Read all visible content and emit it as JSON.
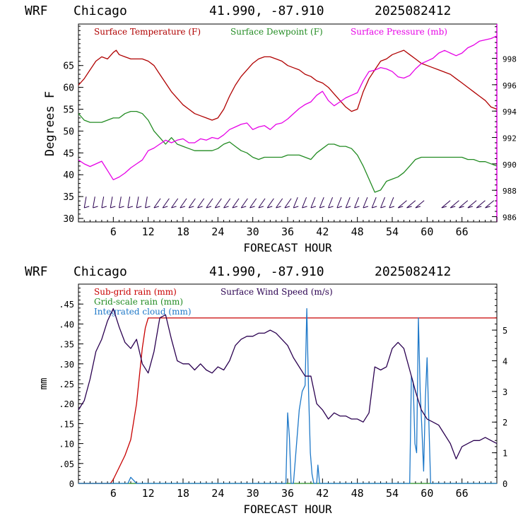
{
  "top_header": {
    "model": "WRF",
    "location": "Chicago",
    "coords": "41.990, -87.910",
    "run": "2025082412"
  },
  "bottom_header": {
    "model": "WRF",
    "location": "Chicago",
    "coords": "41.990, -87.910",
    "run": "2025082412"
  },
  "colors": {
    "temperature": "#b00000",
    "dewpoint": "#228b22",
    "pressure": "#e600e6",
    "sub_grid_rain": "#c80000",
    "grid_scale_rain": "#228b22",
    "integrated_cloud": "#1e78c8",
    "wind_speed": "#2a0050",
    "wind_barbs": "#2a0050",
    "axes": "#000000"
  },
  "chart_data": [
    {
      "type": "line",
      "xlabel": "FORECAST HOUR",
      "ylabel": "Degrees F",
      "x_ticks": [
        "6",
        "12",
        "18",
        "24",
        "30",
        "36",
        "42",
        "48",
        "54",
        "60",
        "66"
      ],
      "x_tick_values": [
        6,
        12,
        18,
        24,
        30,
        36,
        42,
        48,
        54,
        60,
        66
      ],
      "xlim": [
        0,
        72
      ],
      "y_ticks": [
        "30",
        "35",
        "40",
        "45",
        "50",
        "55",
        "60",
        "65"
      ],
      "y_tick_values": [
        30,
        35,
        40,
        45,
        50,
        55,
        60,
        65
      ],
      "ylim": [
        29.2,
        74.5
      ],
      "y2_ticks": [
        "986",
        "988",
        "990",
        "992",
        "994",
        "996",
        "998"
      ],
      "y2_tick_values": [
        986,
        988,
        990,
        992,
        994,
        996,
        998
      ],
      "y2lim": [
        985.6,
        1000.6
      ],
      "legend": [
        "Surface Temperature (F)",
        "Surface Dewpoint (F)",
        "Surface Pressure (mb)"
      ],
      "legend_placement": "top",
      "series": [
        {
          "name": "Surface Temperature (F)",
          "axis": "left",
          "x": [
            0,
            1,
            2,
            3,
            4,
            5,
            6,
            6.5,
            7,
            8,
            9,
            10,
            11,
            12,
            13,
            14,
            15,
            16,
            17,
            18,
            19,
            20,
            21,
            22,
            23,
            24,
            25,
            26,
            27,
            28,
            29,
            30,
            31,
            32,
            33,
            34,
            35,
            36,
            37,
            38,
            39,
            40,
            41,
            42,
            43,
            44,
            45,
            46,
            47,
            48,
            49,
            50,
            51,
            52,
            53,
            54,
            55,
            56,
            57,
            58,
            59,
            60,
            61,
            62,
            63,
            64,
            65,
            66,
            67,
            68,
            69,
            70,
            71,
            72
          ],
          "values": [
            60.5,
            62,
            64,
            66,
            67,
            66.5,
            68,
            68.5,
            67.5,
            67,
            66.5,
            66.5,
            66.5,
            66,
            65,
            63,
            61,
            59,
            57.5,
            56,
            55,
            54,
            53.5,
            53,
            52.5,
            53,
            55,
            58,
            60.5,
            62.5,
            64,
            65.5,
            66.5,
            67,
            67,
            66.5,
            66,
            65,
            64.5,
            64,
            63,
            62.5,
            61.5,
            61,
            60,
            58.5,
            57,
            55.5,
            54.5,
            55,
            59,
            62,
            64,
            66,
            66.5,
            67.5,
            68,
            68.5,
            67.5,
            66.5,
            65.5,
            65,
            64.5,
            64,
            63.5,
            63,
            62,
            61,
            60,
            59,
            58,
            57,
            55.5,
            55
          ]
        },
        {
          "name": "Surface Dewpoint (F)",
          "axis": "left",
          "x": [
            0,
            1,
            2,
            3,
            4,
            5,
            6,
            7,
            8,
            9,
            10,
            11,
            12,
            13,
            14,
            15,
            16,
            17,
            18,
            19,
            20,
            21,
            22,
            23,
            24,
            25,
            26,
            27,
            28,
            29,
            30,
            31,
            32,
            33,
            34,
            35,
            36,
            37,
            38,
            39,
            40,
            41,
            42,
            43,
            44,
            45,
            46,
            47,
            48,
            49,
            50,
            51,
            52,
            53,
            54,
            55,
            56,
            57,
            58,
            59,
            60,
            61,
            62,
            63,
            64,
            65,
            66,
            67,
            68,
            69,
            70,
            71,
            72
          ],
          "values": [
            54,
            52.5,
            52,
            52,
            52,
            52.5,
            53,
            53,
            54,
            54.5,
            54.5,
            54,
            52.5,
            50,
            48.5,
            47,
            48.5,
            47,
            46.5,
            46,
            45.5,
            45.5,
            45.5,
            45.5,
            46,
            47,
            47.5,
            46.5,
            45.5,
            45,
            44,
            43.5,
            44,
            44,
            44,
            44,
            44.5,
            44.5,
            44.5,
            44,
            43.5,
            45,
            46,
            47,
            47,
            46.5,
            46.5,
            46,
            44.5,
            42,
            39,
            36,
            36.5,
            38.5,
            39,
            39.5,
            40.5,
            42,
            43.5,
            44,
            44,
            44,
            44,
            44,
            44,
            44,
            44,
            43.5,
            43.5,
            43,
            43,
            42.5,
            42
          ]
        },
        {
          "name": "Surface Pressure (mb)",
          "axis": "right",
          "x": [
            0,
            1,
            2,
            3,
            4,
            5,
            6,
            7,
            8,
            9,
            10,
            11,
            12,
            13,
            14,
            15,
            16,
            17,
            18,
            19,
            20,
            21,
            22,
            23,
            24,
            25,
            26,
            27,
            28,
            29,
            30,
            31,
            32,
            33,
            34,
            35,
            36,
            37,
            38,
            39,
            40,
            41,
            42,
            43,
            44,
            45,
            46,
            47,
            48,
            49,
            50,
            51,
            52,
            53,
            54,
            55,
            56,
            57,
            58,
            59,
            60,
            61,
            62,
            63,
            64,
            65,
            66,
            67,
            68,
            69,
            70,
            71,
            72
          ],
          "values": [
            990.3,
            990,
            989.8,
            990,
            990.2,
            989.5,
            988.8,
            989,
            989.3,
            989.7,
            990,
            990.3,
            991,
            991.2,
            991.5,
            991.8,
            991.6,
            991.8,
            991.9,
            991.6,
            991.6,
            991.9,
            991.8,
            992,
            991.9,
            992.2,
            992.6,
            992.8,
            993,
            993.1,
            992.6,
            992.8,
            992.9,
            992.6,
            993,
            993.1,
            993.4,
            993.8,
            994.2,
            994.5,
            994.7,
            995.2,
            995.5,
            994.8,
            994.4,
            994.7,
            995,
            995.2,
            995.4,
            996.3,
            997,
            997.1,
            997.3,
            997.2,
            997,
            996.6,
            996.5,
            996.7,
            997.2,
            997.6,
            997.8,
            998,
            998.4,
            998.6,
            998.4,
            998.2,
            998.4,
            998.8,
            999,
            999.3,
            999.4,
            999.5,
            999.7
          ]
        }
      ],
      "wind_barbs": "row of wind barbs along the bottom of the top panel, every hour"
    },
    {
      "type": "line",
      "xlabel": "FORECAST HOUR",
      "ylabel": "mm",
      "x_ticks": [
        "6",
        "12",
        "18",
        "24",
        "30",
        "36",
        "42",
        "48",
        "54",
        "60",
        "66"
      ],
      "x_tick_values": [
        6,
        12,
        18,
        24,
        30,
        36,
        42,
        48,
        54,
        60,
        66
      ],
      "xlim": [
        0,
        72
      ],
      "y_ticks": [
        "0",
        ".05",
        ".10",
        ".15",
        ".20",
        ".25",
        ".30",
        ".35",
        ".40",
        ".45"
      ],
      "y_tick_values": [
        0,
        0.05,
        0.1,
        0.15,
        0.2,
        0.25,
        0.3,
        0.35,
        0.4,
        0.45
      ],
      "ylim": [
        0,
        0.5
      ],
      "y2_ticks": [
        "0",
        "1",
        "2",
        "3",
        "4",
        "5"
      ],
      "y2_tick_values": [
        0,
        1,
        2,
        3,
        4,
        5
      ],
      "y2lim": [
        0,
        6.5
      ],
      "legend": [
        "Sub-grid rain (mm)",
        "Surface Wind Speed (m/s)",
        "Grid-scale rain (mm)",
        "Integrated cloud (mm)"
      ],
      "legend_placement": "top-left",
      "series": [
        {
          "name": "Sub-grid rain (mm)",
          "axis": "left",
          "x": [
            0,
            5.5,
            6,
            7,
            8,
            9,
            10,
            10.5,
            11,
            11.5,
            12,
            72
          ],
          "values": [
            0,
            0,
            0.01,
            0.04,
            0.07,
            0.11,
            0.2,
            0.27,
            0.34,
            0.39,
            0.415,
            0.415
          ]
        },
        {
          "name": "Grid-scale rain (mm)",
          "axis": "left",
          "x": [
            0,
            72
          ],
          "values": [
            0,
            0
          ]
        },
        {
          "name": "Integrated cloud (mm)",
          "axis": "right",
          "x": [
            0,
            8.5,
            9,
            9.5,
            10,
            35.7,
            36,
            36.3,
            36.6,
            37,
            38,
            38.5,
            39,
            39.3,
            39.6,
            39.9,
            40.2,
            40.5,
            41,
            41.2,
            41.5,
            41.8,
            42,
            57,
            57.3,
            57.6,
            57.9,
            58.2,
            58.5,
            58.8,
            59.1,
            59.4,
            59.7,
            60,
            60.3,
            60.6,
            61,
            61.3,
            72
          ],
          "values": [
            0,
            0,
            0.2,
            0.1,
            0,
            0,
            2.3,
            1.5,
            0,
            0,
            2.4,
            3,
            3.2,
            5.7,
            3,
            1,
            0.3,
            0,
            0,
            0.6,
            0,
            0,
            0,
            0,
            3.5,
            3.3,
            1.3,
            1,
            5.4,
            3,
            1.8,
            0.4,
            2.8,
            4.1,
            2,
            0,
            0,
            0,
            0
          ]
        },
        {
          "name": "Surface Wind Speed (m/s)",
          "axis": "right",
          "x": [
            0,
            1,
            2,
            3,
            4,
            5,
            6,
            7,
            8,
            9,
            10,
            11,
            12,
            13,
            14,
            15,
            16,
            17,
            18,
            19,
            20,
            21,
            22,
            23,
            24,
            25,
            26,
            27,
            28,
            29,
            30,
            31,
            32,
            33,
            34,
            35,
            36,
            37,
            38,
            39,
            40,
            41,
            42,
            43,
            44,
            45,
            46,
            47,
            48,
            49,
            50,
            51,
            52,
            53,
            54,
            55,
            56,
            57,
            58,
            59,
            60,
            61,
            62,
            63,
            64,
            65,
            66,
            67,
            68,
            69,
            70,
            71,
            72
          ],
          "values": [
            2.4,
            2.7,
            3.4,
            4.3,
            4.7,
            5.3,
            5.7,
            5.1,
            4.6,
            4.4,
            4.7,
            3.9,
            3.6,
            4.3,
            5.4,
            5.5,
            4.7,
            4,
            3.9,
            3.9,
            3.7,
            3.9,
            3.7,
            3.6,
            3.8,
            3.7,
            4.0,
            4.5,
            4.7,
            4.8,
            4.8,
            4.9,
            4.9,
            5.0,
            4.9,
            4.7,
            4.5,
            4.1,
            3.8,
            3.5,
            3.5,
            2.6,
            2.4,
            2.1,
            2.3,
            2.2,
            2.2,
            2.1,
            2.1,
            2.0,
            2.3,
            3.8,
            3.7,
            3.8,
            4.4,
            4.6,
            4.4,
            3.7,
            3.0,
            2.4,
            2.1,
            2.0,
            1.9,
            1.6,
            1.3,
            0.8,
            1.2,
            1.3,
            1.4,
            1.4,
            1.5,
            1.4,
            1.3
          ]
        }
      ]
    }
  ]
}
